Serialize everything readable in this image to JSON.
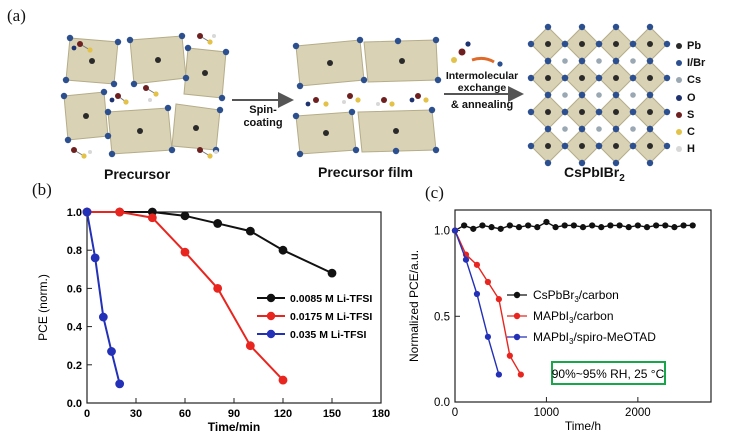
{
  "panel_a": {
    "label": "(a)",
    "captions": {
      "precursor": "Precursor",
      "precursor_film": "Precursor film"
    },
    "product_text": {
      "base": "CsPbIBr",
      "sub": "2"
    },
    "arrow1": [
      "Spin-",
      "coating"
    ],
    "arrow2": [
      "Intermolecular",
      "exchange",
      "& annealing"
    ],
    "legend": [
      {
        "label": "Pb",
        "color": "#2a2a2a"
      },
      {
        "label": "I/Br",
        "color": "#2c4f8f"
      },
      {
        "label": "Cs",
        "color": "#9aa8b4"
      },
      {
        "label": "O",
        "color": "#1f3270"
      },
      {
        "label": "S",
        "color": "#6e1f1f"
      },
      {
        "label": "C",
        "color": "#e3c24a"
      },
      {
        "label": "H",
        "color": "#d8d8d8"
      }
    ],
    "colors": {
      "octahedron": "#d9d2b4",
      "octahedron_edge": "#b5ac88",
      "halide": "#2c4f8f",
      "pb": "#2a2a2a",
      "cs": "#9aa8b4"
    }
  },
  "chart_data": [
    {
      "panel_label": "(b)",
      "type": "line",
      "xlabel": "Time/min",
      "ylabel": "PCE (norm.)",
      "xlim": [
        0,
        180
      ],
      "ylim": [
        0,
        1.0
      ],
      "xticks": [
        "0",
        "30",
        "60",
        "90",
        "120",
        "150",
        "180"
      ],
      "yticks": [
        "0.0",
        "0.2",
        "0.4",
        "0.6",
        "0.8",
        "1.0"
      ],
      "grid": false,
      "legend_position": "right",
      "series": [
        {
          "name": "0.0085 M Li-TFSI",
          "color": "#111111",
          "x": [
            0,
            20,
            40,
            60,
            80,
            100,
            120,
            150
          ],
          "y": [
            1.0,
            1.0,
            1.0,
            0.98,
            0.94,
            0.9,
            0.8,
            0.68
          ]
        },
        {
          "name": "0.0175 M Li-TFSI",
          "color": "#e8261f",
          "x": [
            0,
            20,
            40,
            60,
            80,
            100,
            120
          ],
          "y": [
            1.0,
            1.0,
            0.97,
            0.79,
            0.6,
            0.3,
            0.12
          ]
        },
        {
          "name": "0.035 M Li-TFSI",
          "color": "#2330b8",
          "x": [
            0,
            5,
            10,
            15,
            20
          ],
          "y": [
            1.0,
            0.76,
            0.45,
            0.27,
            0.1
          ]
        }
      ]
    },
    {
      "panel_label": "(c)",
      "type": "line",
      "xlabel": "Time/h",
      "ylabel": "Normalized PCE/a.u.",
      "xlim": [
        0,
        2800
      ],
      "ylim": [
        0,
        1.12
      ],
      "xticks": [
        "0",
        "1000",
        "2000"
      ],
      "yticks": [
        "0.0",
        "0.5",
        "1.0"
      ],
      "grid": false,
      "legend_position": "right",
      "annotation": "90%~95% RH, 25 °C",
      "annotation_color": "#19a64a",
      "series": [
        {
          "name": "CsPbBr3/carbon",
          "label_base": "CsPbBr",
          "label_sub": "3",
          "label_rest": "/carbon",
          "color": "#111111",
          "x": [
            0,
            100,
            200,
            300,
            400,
            500,
            600,
            700,
            800,
            900,
            1000,
            1100,
            1200,
            1300,
            1400,
            1500,
            1600,
            1700,
            1800,
            1900,
            2000,
            2100,
            2200,
            2300,
            2400,
            2500,
            2600
          ],
          "y": [
            1.0,
            1.03,
            1.01,
            1.03,
            1.02,
            1.01,
            1.03,
            1.02,
            1.03,
            1.02,
            1.05,
            1.02,
            1.03,
            1.03,
            1.02,
            1.03,
            1.02,
            1.03,
            1.03,
            1.02,
            1.03,
            1.02,
            1.03,
            1.03,
            1.02,
            1.03,
            1.03
          ]
        },
        {
          "name": "MAPbI3/carbon",
          "label_base": "MAPbI",
          "label_sub": "3",
          "label_rest": "/carbon",
          "color": "#e8261f",
          "x": [
            0,
            120,
            240,
            360,
            480,
            600,
            720
          ],
          "y": [
            1.0,
            0.86,
            0.8,
            0.7,
            0.6,
            0.27,
            0.16
          ]
        },
        {
          "name": "MAPbI3/spiro-MeOTAD",
          "label_base": "MAPbI",
          "label_sub": "3",
          "label_rest": "/spiro-MeOTAD",
          "color": "#2330b8",
          "x": [
            0,
            120,
            240,
            360,
            480
          ],
          "y": [
            1.0,
            0.83,
            0.63,
            0.38,
            0.16
          ]
        }
      ]
    }
  ]
}
